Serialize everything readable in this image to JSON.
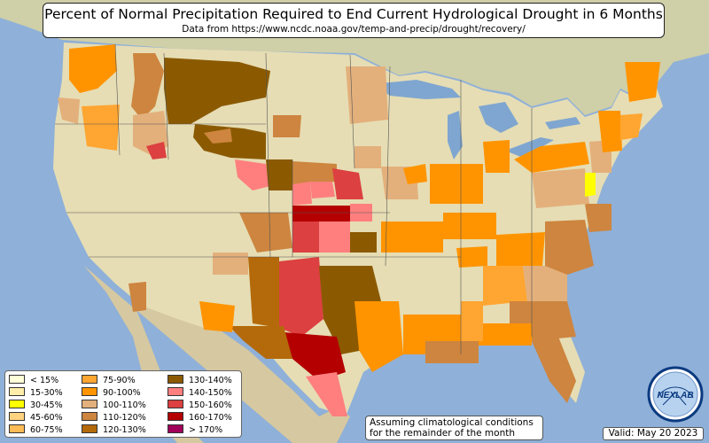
{
  "title": "Percent of Normal Precipitation Required to End Current Hydrological Drought in 6 Months",
  "subtitle": "Data from https://www.ncdc.noaa.gov/temp-and-precip/drought/recovery/",
  "legend": [
    {
      "label": "< 15%",
      "color": "#ffffd8"
    },
    {
      "label": "15-30%",
      "color": "#ffeeaa"
    },
    {
      "label": "30-45%",
      "color": "#ffff00"
    },
    {
      "label": "45-60%",
      "color": "#ffd27f"
    },
    {
      "label": "60-75%",
      "color": "#ffbb55"
    },
    {
      "label": "75-90%",
      "color": "#ffa531"
    },
    {
      "label": "90-100%",
      "color": "#ff9400"
    },
    {
      "label": "100-110%",
      "color": "#e3b07c"
    },
    {
      "label": "110-120%",
      "color": "#cd853f"
    },
    {
      "label": "120-130%",
      "color": "#b46a0a"
    },
    {
      "label": "130-140%",
      "color": "#8b5a00"
    },
    {
      "label": "140-150%",
      "color": "#ff7f7f"
    },
    {
      "label": "150-160%",
      "color": "#dc4040"
    },
    {
      "label": "160-170%",
      "color": "#b40000"
    },
    {
      "label": "> 170%",
      "color": "#a0005a"
    }
  ],
  "note": "Assuming climatological conditions for the remainder of the month",
  "valid": "Valid: May 20 2023",
  "logo_text": "NEXLAB"
}
